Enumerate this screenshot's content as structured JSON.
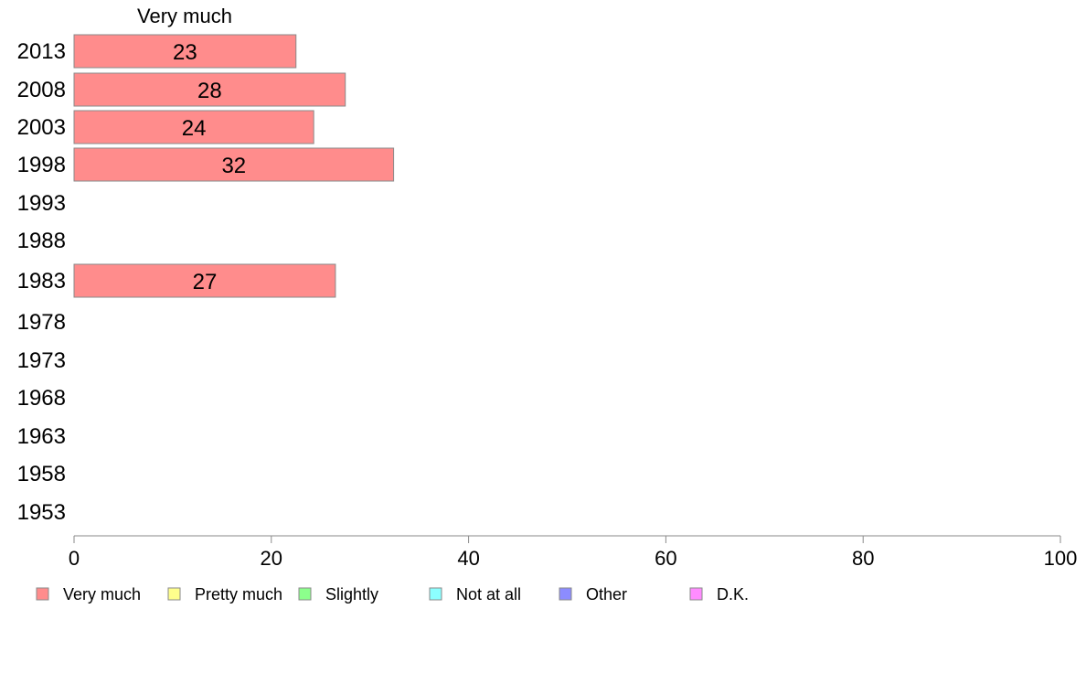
{
  "chart_data": {
    "type": "bar",
    "orientation": "horizontal",
    "stacked": true,
    "categories": [
      "2013",
      "2008",
      "2003",
      "1998",
      "1993",
      "1988",
      "1983",
      "1978",
      "1973",
      "1968",
      "1963",
      "1958",
      "1953"
    ],
    "series": [
      {
        "name": "Very much",
        "color": "#ff8c8c",
        "values": [
          23,
          28,
          24,
          32,
          null,
          null,
          27,
          null,
          null,
          null,
          null,
          null,
          null
        ]
      },
      {
        "name": "Pretty much",
        "color": "#ffff8c",
        "values": [
          null,
          null,
          null,
          null,
          null,
          null,
          null,
          null,
          null,
          null,
          null,
          null,
          null
        ]
      },
      {
        "name": "Slightly",
        "color": "#8cff8c",
        "values": [
          null,
          null,
          null,
          null,
          null,
          null,
          null,
          null,
          null,
          null,
          null,
          null,
          null
        ]
      },
      {
        "name": "Not at all",
        "color": "#8cffff",
        "values": [
          null,
          null,
          null,
          null,
          null,
          null,
          null,
          null,
          null,
          null,
          null,
          null,
          null
        ]
      },
      {
        "name": "Other",
        "color": "#8c8cff",
        "values": [
          null,
          null,
          null,
          null,
          null,
          null,
          null,
          null,
          null,
          null,
          null,
          null,
          null
        ]
      },
      {
        "name": "D.K.",
        "color": "#ff8cff",
        "values": [
          null,
          null,
          null,
          null,
          null,
          null,
          null,
          null,
          null,
          null,
          null,
          null,
          null
        ]
      }
    ],
    "bar_values": [
      22.5,
      27.5,
      24.3,
      32.4,
      null,
      null,
      26.5,
      null,
      null,
      null,
      null,
      null,
      null
    ],
    "series_heading": "Very much",
    "xlim": [
      0,
      100
    ],
    "xticks": [
      0,
      20,
      40,
      60,
      80,
      100
    ],
    "grid": false,
    "legend_position": "bottom"
  }
}
